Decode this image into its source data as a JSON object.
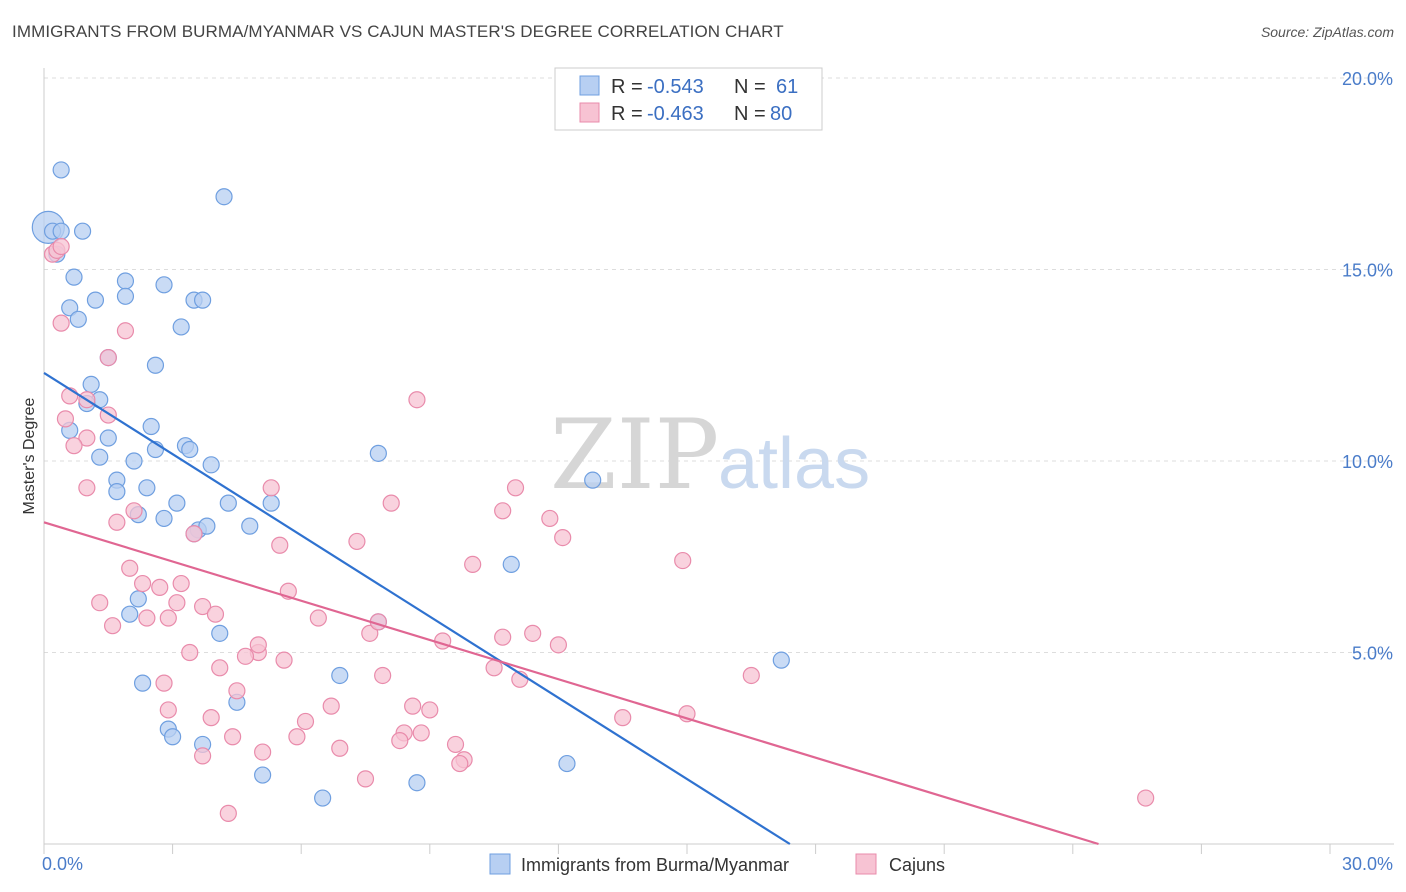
{
  "title": "IMMIGRANTS FROM BURMA/MYANMAR VS CAJUN MASTER'S DEGREE CORRELATION CHART",
  "source": "Source: ZipAtlas.com",
  "watermark": {
    "zip": "ZIP",
    "atlas": "atlas"
  },
  "colors": {
    "blue_fill": "#b7cff2",
    "blue_stroke": "#6f9fe0",
    "blue_line": "#2f72d0",
    "pink_fill": "#f7c3d3",
    "pink_stroke": "#e98bab",
    "pink_line": "#e06692",
    "tick_text": "#4a7cc9",
    "grid": "#dddddd"
  },
  "legend": {
    "rows": [
      {
        "r_label": "R =",
        "r_value": "-0.543",
        "n_label": "N =",
        "n_value": "61"
      },
      {
        "r_label": "R =",
        "r_value": "-0.463",
        "n_label": "N =",
        "n_value": "80"
      }
    ]
  },
  "bottom_legend": [
    "Immigrants from Burma/Myanmar",
    "Cajuns"
  ],
  "chart_data": {
    "type": "scatter",
    "ylabel": "Master's Degree",
    "xlabel": "",
    "xlim": [
      0,
      30
    ],
    "ylim": [
      0,
      20
    ],
    "x_tick_labels": [
      "0.0%",
      "30.0%"
    ],
    "y_tick_labels": [
      "5.0%",
      "10.0%",
      "15.0%",
      "20.0%"
    ],
    "y_ticks": [
      5,
      10,
      15,
      20
    ],
    "grid": "horizontal dashed",
    "legend_placement": "top-center",
    "series": [
      {
        "name": "Immigrants from Burma/Myanmar",
        "color": "#6f9fe0",
        "trend": {
          "x": [
            0,
            17.4
          ],
          "y": [
            12.3,
            0
          ]
        },
        "points": [
          [
            0.1,
            16.1
          ],
          [
            0.2,
            16.0
          ],
          [
            0.4,
            16.0
          ],
          [
            0.4,
            17.6
          ],
          [
            0.3,
            15.4
          ],
          [
            0.9,
            16.0
          ],
          [
            4.2,
            16.9
          ],
          [
            0.7,
            14.8
          ],
          [
            1.9,
            14.7
          ],
          [
            2.8,
            14.6
          ],
          [
            0.6,
            14.0
          ],
          [
            1.2,
            14.2
          ],
          [
            1.9,
            14.3
          ],
          [
            3.5,
            14.2
          ],
          [
            3.7,
            14.2
          ],
          [
            0.8,
            13.7
          ],
          [
            3.2,
            13.5
          ],
          [
            1.5,
            12.7
          ],
          [
            2.6,
            12.5
          ],
          [
            1.1,
            12.0
          ],
          [
            1.3,
            11.6
          ],
          [
            1.0,
            11.5
          ],
          [
            0.6,
            10.8
          ],
          [
            2.5,
            10.9
          ],
          [
            1.5,
            10.6
          ],
          [
            3.3,
            10.4
          ],
          [
            2.6,
            10.3
          ],
          [
            3.4,
            10.3
          ],
          [
            1.3,
            10.1
          ],
          [
            2.1,
            10.0
          ],
          [
            3.9,
            9.9
          ],
          [
            7.8,
            10.2
          ],
          [
            1.7,
            9.5
          ],
          [
            1.7,
            9.2
          ],
          [
            2.4,
            9.3
          ],
          [
            12.8,
            9.5
          ],
          [
            3.1,
            8.9
          ],
          [
            4.3,
            8.9
          ],
          [
            5.3,
            8.9
          ],
          [
            2.2,
            8.6
          ],
          [
            2.8,
            8.5
          ],
          [
            3.6,
            8.2
          ],
          [
            3.8,
            8.3
          ],
          [
            4.8,
            8.3
          ],
          [
            10.9,
            7.3
          ],
          [
            2.0,
            6.0
          ],
          [
            2.2,
            6.4
          ],
          [
            7.8,
            5.8
          ],
          [
            4.1,
            5.5
          ],
          [
            17.2,
            4.8
          ],
          [
            2.3,
            4.2
          ],
          [
            6.9,
            4.4
          ],
          [
            4.5,
            3.7
          ],
          [
            2.9,
            3.0
          ],
          [
            3.0,
            2.8
          ],
          [
            3.7,
            2.6
          ],
          [
            12.2,
            2.1
          ],
          [
            5.1,
            1.8
          ],
          [
            6.5,
            1.2
          ],
          [
            8.7,
            1.6
          ],
          [
            3.5,
            8.1
          ]
        ]
      },
      {
        "name": "Cajuns",
        "color": "#e98bab",
        "trend": {
          "x": [
            0,
            24.6
          ],
          "y": [
            8.4,
            0
          ]
        },
        "points": [
          [
            0.2,
            15.4
          ],
          [
            0.3,
            15.5
          ],
          [
            0.4,
            15.6
          ],
          [
            0.4,
            13.6
          ],
          [
            1.9,
            13.4
          ],
          [
            1.5,
            12.7
          ],
          [
            0.6,
            11.7
          ],
          [
            1.0,
            11.6
          ],
          [
            1.5,
            11.2
          ],
          [
            0.5,
            11.1
          ],
          [
            8.7,
            11.6
          ],
          [
            1.0,
            10.6
          ],
          [
            0.7,
            10.4
          ],
          [
            1.0,
            9.3
          ],
          [
            5.3,
            9.3
          ],
          [
            8.1,
            8.9
          ],
          [
            11.0,
            9.3
          ],
          [
            2.1,
            8.7
          ],
          [
            10.7,
            8.7
          ],
          [
            11.8,
            8.5
          ],
          [
            1.7,
            8.4
          ],
          [
            3.5,
            8.1
          ],
          [
            12.1,
            8.0
          ],
          [
            5.5,
            7.8
          ],
          [
            7.3,
            7.9
          ],
          [
            10.0,
            7.3
          ],
          [
            14.9,
            7.4
          ],
          [
            2.0,
            7.2
          ],
          [
            2.3,
            6.8
          ],
          [
            2.7,
            6.7
          ],
          [
            3.2,
            6.8
          ],
          [
            5.7,
            6.6
          ],
          [
            3.1,
            6.3
          ],
          [
            1.3,
            6.3
          ],
          [
            3.7,
            6.2
          ],
          [
            4.0,
            6.0
          ],
          [
            2.9,
            5.9
          ],
          [
            2.4,
            5.9
          ],
          [
            6.4,
            5.9
          ],
          [
            1.6,
            5.7
          ],
          [
            5.0,
            5.0
          ],
          [
            5.0,
            5.2
          ],
          [
            7.6,
            5.5
          ],
          [
            7.8,
            5.8
          ],
          [
            9.3,
            5.3
          ],
          [
            10.7,
            5.4
          ],
          [
            11.4,
            5.5
          ],
          [
            12.0,
            5.2
          ],
          [
            3.4,
            5.0
          ],
          [
            4.7,
            4.9
          ],
          [
            5.6,
            4.8
          ],
          [
            4.1,
            4.6
          ],
          [
            10.5,
            4.6
          ],
          [
            7.9,
            4.4
          ],
          [
            11.1,
            4.3
          ],
          [
            16.5,
            4.4
          ],
          [
            2.8,
            4.2
          ],
          [
            4.5,
            4.0
          ],
          [
            6.7,
            3.6
          ],
          [
            2.9,
            3.5
          ],
          [
            8.6,
            3.6
          ],
          [
            9.0,
            3.5
          ],
          [
            3.9,
            3.3
          ],
          [
            13.5,
            3.3
          ],
          [
            15.0,
            3.4
          ],
          [
            6.1,
            3.2
          ],
          [
            8.4,
            2.9
          ],
          [
            8.8,
            2.9
          ],
          [
            4.4,
            2.8
          ],
          [
            5.9,
            2.8
          ],
          [
            8.3,
            2.7
          ],
          [
            9.6,
            2.6
          ],
          [
            6.9,
            2.5
          ],
          [
            5.1,
            2.4
          ],
          [
            3.7,
            2.3
          ],
          [
            9.8,
            2.2
          ],
          [
            9.7,
            2.1
          ],
          [
            7.5,
            1.7
          ],
          [
            4.3,
            0.8
          ],
          [
            25.7,
            1.2
          ]
        ]
      }
    ]
  }
}
